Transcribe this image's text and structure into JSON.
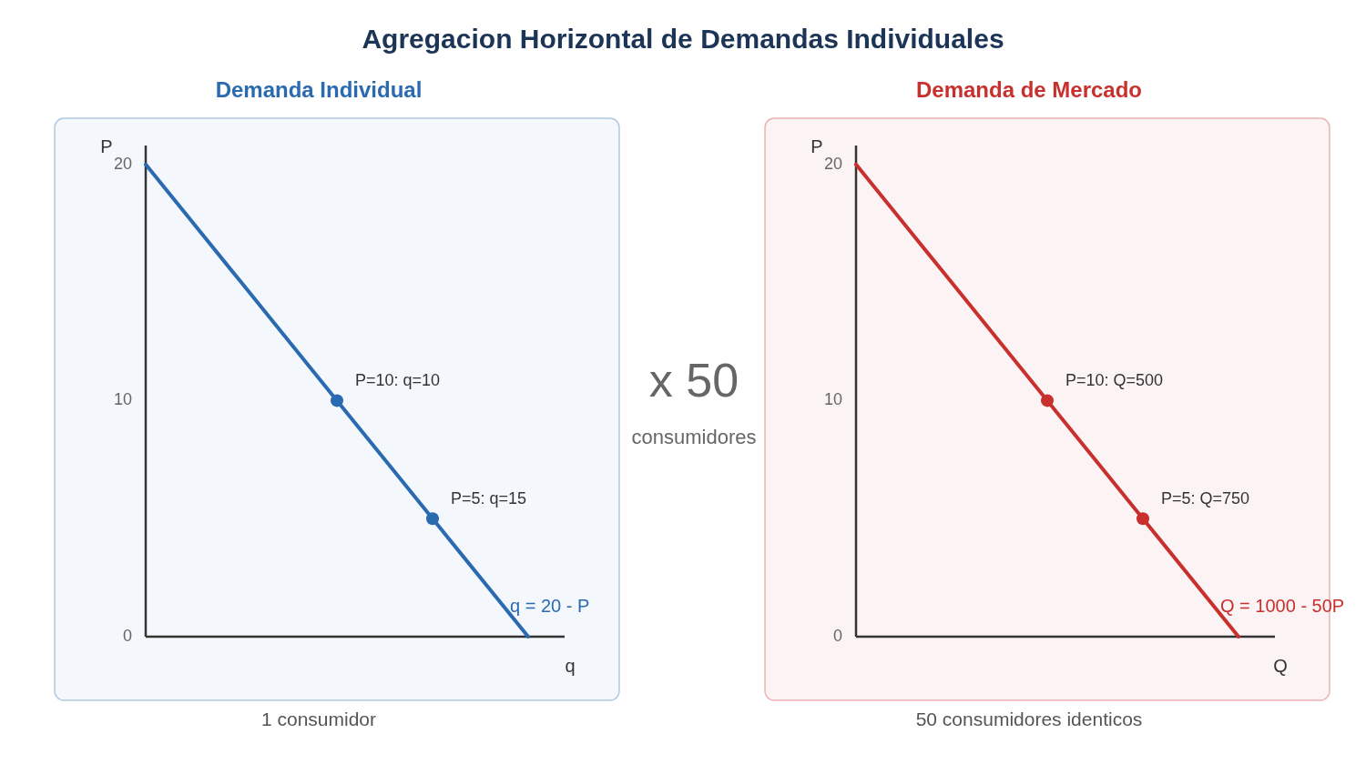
{
  "chart_data": [
    {
      "type": "other",
      "title": "Agregacion Horizontal de Demandas Individuales",
      "annotations": [
        "x 50",
        "consumidores"
      ]
    },
    {
      "type": "line",
      "title": "Demanda Individual",
      "xlabel": "q",
      "ylabel": "P",
      "categories": [
        null,
        null,
        null,
        null,
        null
      ],
      "ylim": [
        0,
        20.8
      ],
      "yticks": [
        0,
        10,
        20
      ],
      "tick_labels": "y",
      "annotations": [
        "1 consumidor"
      ],
      "series": [
        {
          "type": "line",
          "name": "q = 20 - P",
          "color": "#2a6ab0",
          "marker": "none",
          "values": [
            20,
            15,
            10,
            5,
            0
          ]
        },
        {
          "type": "scatter",
          "color": "#2a6ab0",
          "marker": "circle",
          "values": [
            null,
            null,
            10,
            5,
            null
          ],
          "value_labels": [
            null,
            null,
            "P=10: q=10",
            "P=5: q=15",
            null
          ]
        }
      ]
    },
    {
      "type": "line",
      "title": "Demanda de Mercado",
      "xlabel": "Q",
      "ylabel": "P",
      "categories": [
        null,
        null,
        null,
        null,
        null
      ],
      "ylim": [
        0,
        20.8
      ],
      "yticks": [
        0,
        10,
        20
      ],
      "tick_labels": "y",
      "annotations": [
        "50 consumidores identicos"
      ],
      "series": [
        {
          "type": "line",
          "name": "Q = 1000 - 50P",
          "color": "#c8302e",
          "marker": "none",
          "values": [
            20,
            15,
            10,
            5,
            0
          ]
        },
        {
          "type": "scatter",
          "color": "#c8302e",
          "marker": "circle",
          "values": [
            null,
            null,
            10,
            5,
            null
          ],
          "value_labels": [
            null,
            null,
            "P=10: Q=500",
            "P=5: Q=750",
            null
          ]
        }
      ]
    }
  ]
}
